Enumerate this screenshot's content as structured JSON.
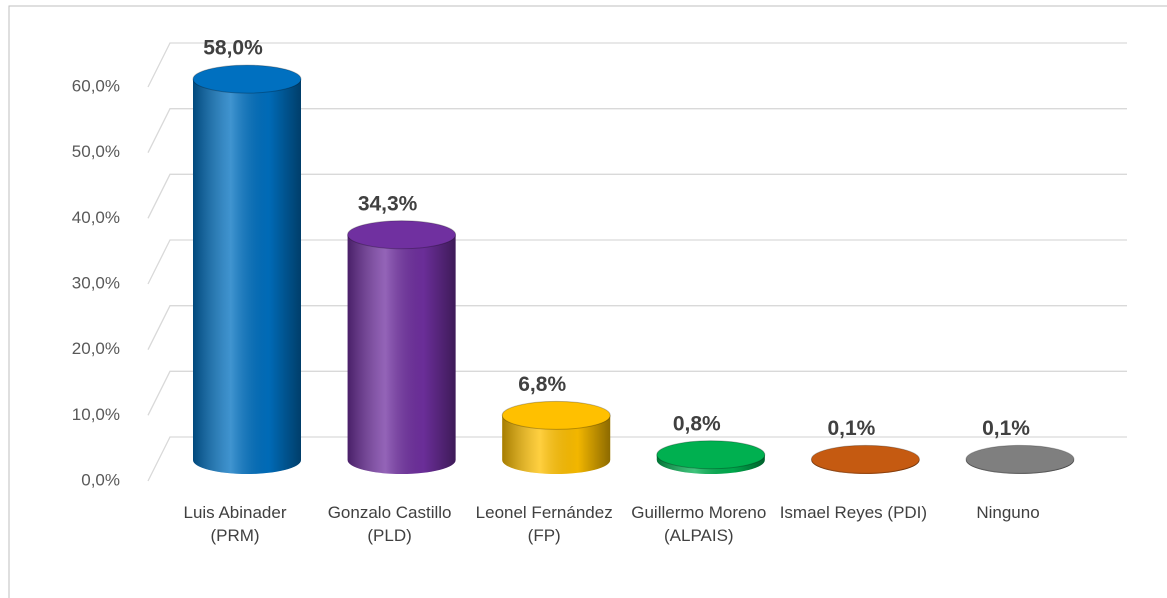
{
  "chart_data": {
    "type": "bar3d",
    "categories": [
      "Luis Abinader (PRM)",
      "Gonzalo Castillo (PLD)",
      "Leonel Fernández (FP)",
      "Guillermo Moreno (ALPAIS)",
      "Ismael Reyes (PDI)",
      "Ninguno"
    ],
    "values": [
      58.0,
      34.3,
      6.8,
      0.8,
      0.1,
      0.1
    ],
    "value_labels": [
      "58,0%",
      "34,3%",
      "6,8%",
      "0,8%",
      "0,1%",
      "0,1%"
    ],
    "colors": [
      "#0070c0",
      "#7030a0",
      "#ffc000",
      "#00b050",
      "#c55a11",
      "#7f7f7f"
    ],
    "ylim": [
      0,
      60
    ],
    "yticks": [
      {
        "value": 0,
        "label": "0,0%"
      },
      {
        "value": 10,
        "label": "10,0%"
      },
      {
        "value": 20,
        "label": "20,0%"
      },
      {
        "value": 30,
        "label": "30,0%"
      },
      {
        "value": 40,
        "label": "40,0%"
      },
      {
        "value": 50,
        "label": "50,0%"
      },
      {
        "value": 60,
        "label": "60,0%"
      }
    ],
    "grid": true
  }
}
